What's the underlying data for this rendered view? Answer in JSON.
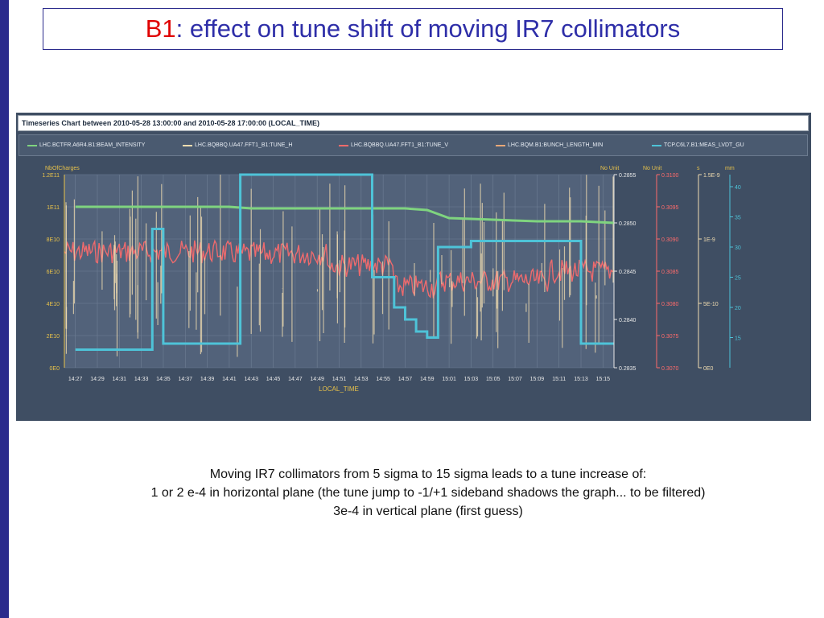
{
  "slide": {
    "title_prefix": "B1",
    "title_rest": ": effect on tune shift of moving IR7 collimators",
    "caption_lines": [
      "Moving IR7 collimators from 5 sigma to 15 sigma leads to a tune increase of:",
      "1 or 2 e-4 in horizontal plane (the tune jump to -1/+1 sideband shadows the graph... to be filtered)",
      "3e-4 in vertical plane (first guess)"
    ]
  },
  "chart": {
    "header": "Timeseries Chart between 2010-05-28 13:00:00 and 2010-05-28 17:00:00 (LOCAL_TIME)",
    "legend": [
      {
        "label": "LHC.BCTFR.A6R4.B1:BEAM_INTENSITY",
        "color": "#7fd47f"
      },
      {
        "label": "LHC.BQBBQ.UA47.FFT1_B1:TUNE_H",
        "color": "#f0dcb0"
      },
      {
        "label": "LHC.BQBBQ.UA47.FFT1_B1:TUNE_V",
        "color": "#ff6b6b"
      },
      {
        "label": "LHC.BQM.B1:BUNCH_LENGTH_MIN",
        "color": "#e8a878"
      },
      {
        "label": "TCP.C6L7.B1:MEAS_LVDT_GU",
        "color": "#4ec3d8"
      }
    ],
    "axis_units": {
      "left": "NbOfCharges",
      "right1": "No Unit",
      "right2": "No Unit",
      "right3": "s",
      "right4": "mm"
    },
    "xlabel": "LOCAL_TIME"
  },
  "chart_data": {
    "type": "line",
    "x": [
      "14:27",
      "14:29",
      "14:31",
      "14:33",
      "14:35",
      "14:37",
      "14:39",
      "14:41",
      "14:43",
      "14:45",
      "14:47",
      "14:49",
      "14:51",
      "14:53",
      "14:55",
      "14:57",
      "14:59",
      "15:01",
      "15:03",
      "15:05",
      "15:07",
      "15:09",
      "15:11",
      "15:13",
      "15:15"
    ],
    "xlabel": "LOCAL_TIME",
    "axes": {
      "left_intensity": {
        "label": "NbOfCharges",
        "ticks": [
          "0E0",
          "2E10",
          "4E10",
          "6E10",
          "8E10",
          "1E11",
          "1.2E11"
        ],
        "ylim": [
          0,
          120000000000.0
        ],
        "color": "#e8c24a"
      },
      "right_tune_h": {
        "label": "No Unit",
        "ticks": [
          "0.2835",
          "0.2840",
          "0.2845",
          "0.2850",
          "0.2855"
        ],
        "ylim": [
          0.2835,
          0.2855
        ],
        "color": "#e8e8e8"
      },
      "right_tune_v": {
        "label": "No Unit",
        "ticks": [
          "0.3070",
          "0.3075",
          "0.3080",
          "0.3085",
          "0.3090",
          "0.3095",
          "0.3100"
        ],
        "ylim": [
          0.307,
          0.31
        ],
        "color": "#ff6b6b"
      },
      "right_bunch_length": {
        "label": "s",
        "ticks": [
          "0E0",
          "5E-10",
          "1E-9",
          "1.5E-9"
        ],
        "ylim": [
          0,
          1.5e-09
        ],
        "color": "#f0dcb0"
      },
      "right_lvdt": {
        "label": "mm",
        "ticks": [
          "15",
          "20",
          "25",
          "30",
          "35",
          "40"
        ],
        "ylim": [
          10,
          42
        ],
        "color": "#4ec3d8"
      }
    },
    "series": [
      {
        "name": "LHC.BCTFR.A6R4.B1:BEAM_INTENSITY",
        "axis": "left_intensity",
        "x": [
          "14:27",
          "14:41",
          "14:43",
          "14:57",
          "14:59",
          "15:01",
          "15:05",
          "15:09",
          "15:13",
          "15:16"
        ],
        "values": [
          100000000000.0,
          100000000000.0,
          99000000000.0,
          99000000000.0,
          98000000000.0,
          93000000000.0,
          92000000000.0,
          91000000000.0,
          91000000000.0,
          90000000000.0
        ]
      },
      {
        "name": "TCP.C6L7.B1:MEAS_LVDT_GU",
        "axis": "right_lvdt",
        "type": "step",
        "x": [
          "14:27",
          "14:33",
          "14:34",
          "14:35",
          "14:41",
          "14:42",
          "14:52",
          "14:54",
          "14:56",
          "14:57",
          "14:58",
          "14:59",
          "15:00",
          "15:03",
          "15:05",
          "15:07",
          "15:09",
          "15:11",
          "15:13",
          "15:16"
        ],
        "values": [
          13.0,
          13.0,
          33.0,
          14.0,
          14.0,
          42.0,
          42.0,
          25.0,
          20.0,
          18.0,
          16.0,
          15.0,
          30.0,
          31.0,
          31.0,
          31.0,
          31.0,
          31.0,
          14.0,
          14.0
        ]
      }
    ]
  }
}
